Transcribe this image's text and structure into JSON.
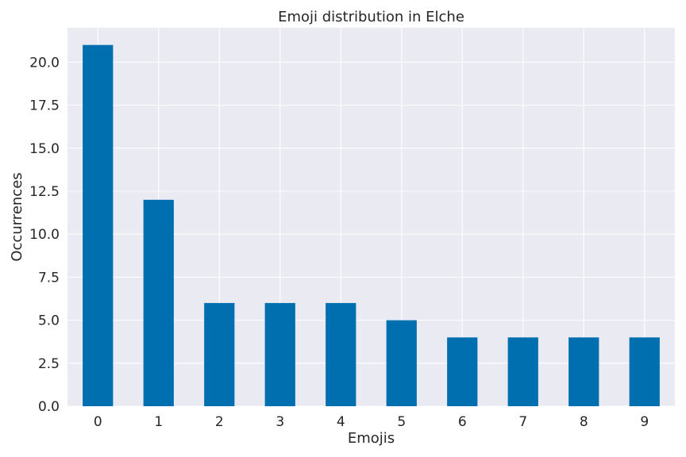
{
  "chart_data": {
    "type": "bar",
    "title": "Emoji distribution in Elche",
    "xlabel": "Emojis",
    "ylabel": "Occurrences",
    "categories": [
      "0",
      "1",
      "2",
      "3",
      "4",
      "5",
      "6",
      "7",
      "8",
      "9"
    ],
    "values": [
      21,
      12,
      6,
      6,
      6,
      5,
      4,
      4,
      4,
      4
    ],
    "ylim": [
      0,
      22
    ],
    "yticks": [
      "0.0",
      "2.5",
      "5.0",
      "7.5",
      "10.0",
      "12.5",
      "15.0",
      "17.5",
      "20.0"
    ],
    "grid": true,
    "legend": "none",
    "colors": {
      "bar": "#006fb0",
      "plot_background": "#eaeaf2",
      "grid": "#ffffff"
    }
  }
}
